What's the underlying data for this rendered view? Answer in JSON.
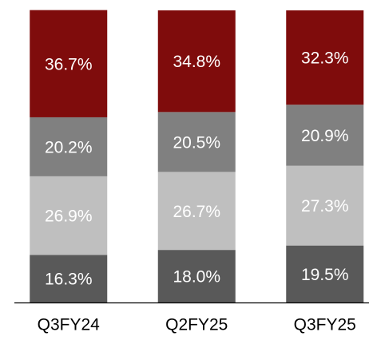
{
  "chart_data": {
    "type": "stacked_bar",
    "categories": [
      "Q3FY24",
      "Q2FY25",
      "Q3FY25"
    ],
    "ylim": [
      0,
      100
    ],
    "series": [
      {
        "color": "#595959",
        "values": [
          16.3,
          18.0,
          19.5
        ],
        "value_labels": [
          "16.3%",
          "18.0%",
          "19.5%"
        ]
      },
      {
        "color": "#bfbfbf",
        "values": [
          26.9,
          26.7,
          27.3
        ],
        "value_labels": [
          "26.9%",
          "26.7%",
          "27.3%"
        ]
      },
      {
        "color": "#808080",
        "values": [
          20.2,
          20.5,
          20.9
        ],
        "value_labels": [
          "20.2%",
          "20.5%",
          "20.9%"
        ]
      },
      {
        "color": "#7f0c0c",
        "values": [
          36.7,
          34.8,
          32.3
        ],
        "value_labels": [
          "36.7%",
          "34.8%",
          "32.3%"
        ]
      }
    ]
  }
}
